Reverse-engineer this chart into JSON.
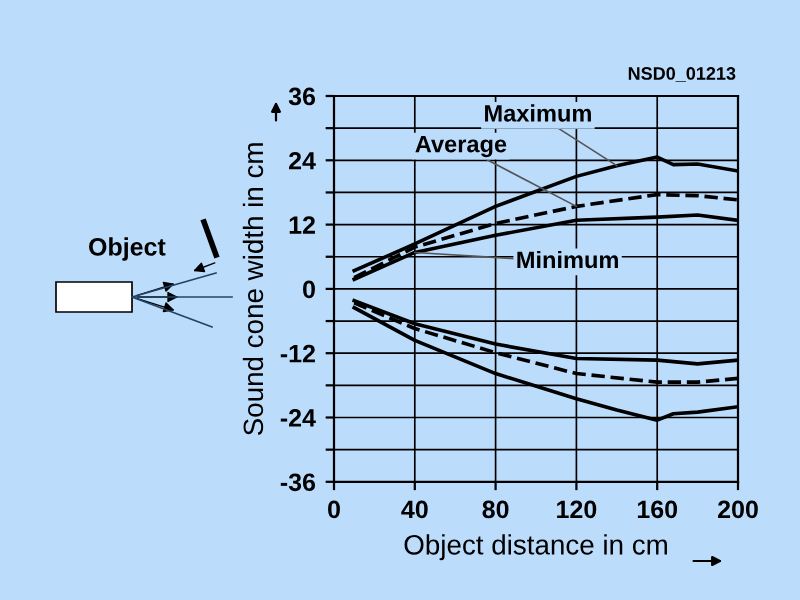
{
  "chart_data": {
    "type": "line",
    "xlabel": "Object distance in cm",
    "ylabel": "Sound cone width in cm",
    "annotations": [
      "NSD0_01213",
      "Object"
    ],
    "series": [
      {
        "name": "Maximum",
        "color": "#000000",
        "x": [
          10,
          40,
          80,
          120,
          140,
          160,
          168,
          180,
          200
        ],
        "values": [
          3.4,
          8.4,
          15.4,
          21,
          23,
          24.6,
          23.2,
          23.3,
          22
        ]
      },
      {
        "name": "Average",
        "color": "#000000",
        "line_style": "dashed",
        "x": [
          10,
          40,
          80,
          120,
          160,
          180,
          200
        ],
        "values": [
          2.1,
          7.8,
          12.2,
          15.4,
          17.6,
          17.4,
          16.6
        ]
      },
      {
        "name": "Minimum",
        "color": "#000000",
        "x": [
          10,
          40,
          80,
          120,
          160,
          180,
          200
        ],
        "values": [
          1.8,
          6.8,
          10,
          12.8,
          13.4,
          13.8,
          12.8
        ]
      },
      {
        "color": "#000000",
        "x": [
          10,
          40,
          80,
          120,
          160,
          180,
          200
        ],
        "values": [
          -2.2,
          -6.5,
          -10.3,
          -13,
          -13.3,
          -14,
          -13.3
        ]
      },
      {
        "color": "#000000",
        "line_style": "dashed",
        "x": [
          10,
          40,
          80,
          120,
          160,
          180,
          200
        ],
        "values": [
          -2.6,
          -7.4,
          -11.9,
          -15.8,
          -17.4,
          -17.4,
          -16.7
        ]
      },
      {
        "color": "#000000",
        "x": [
          10,
          40,
          80,
          120,
          140,
          160,
          168,
          180,
          200
        ],
        "values": [
          -3.5,
          -9.6,
          -15.8,
          -20.5,
          -22.6,
          -24.5,
          -23.3,
          -23,
          -22
        ]
      }
    ],
    "xlim": [
      0,
      200
    ],
    "xticks": [
      0,
      40,
      80,
      120,
      160,
      200
    ],
    "ylim": [
      -36,
      36
    ],
    "yticks": [
      -36,
      {
        "value": -30,
        "label": null
      },
      -24,
      {
        "value": -18,
        "label": null
      },
      -12,
      {
        "value": -6,
        "label": null
      },
      0,
      {
        "value": 6,
        "label": null
      },
      12,
      {
        "value": 18,
        "label": null
      },
      24,
      {
        "value": 30,
        "label": null
      },
      36
    ],
    "grid": true,
    "line_style": "solid",
    "marker": "none"
  }
}
